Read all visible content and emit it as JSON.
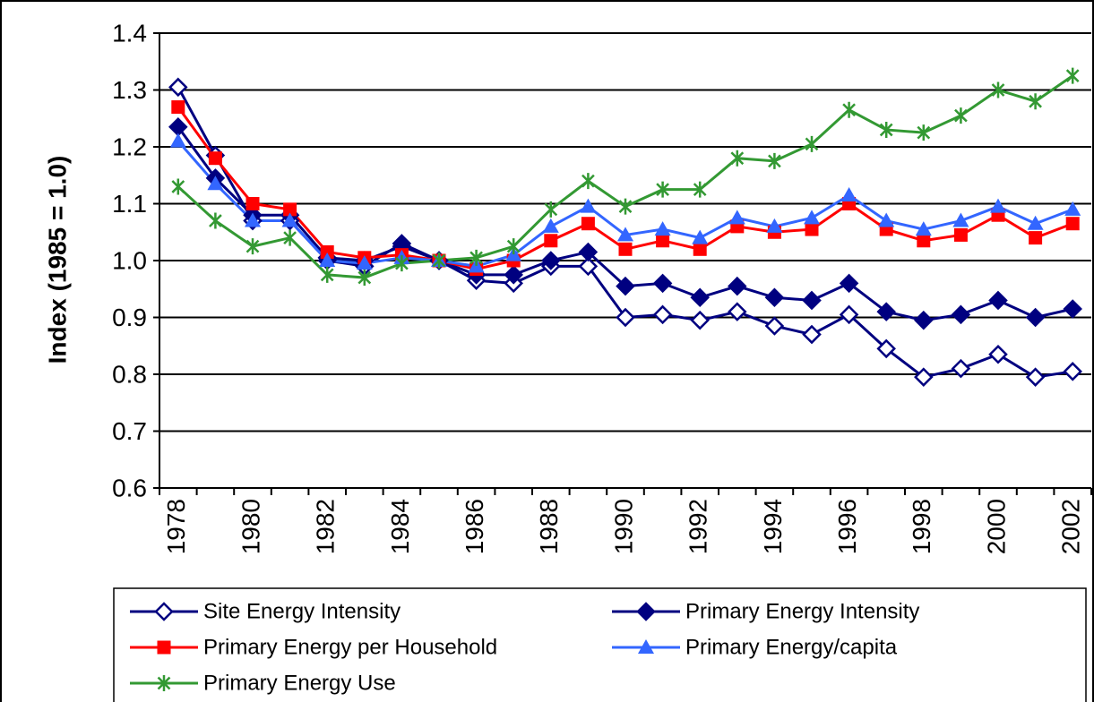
{
  "chart_data": {
    "type": "line",
    "y_label": "Index (1985 = 1.0)",
    "categories": [
      "1978",
      null,
      "1980",
      null,
      "1982",
      null,
      "1984",
      null,
      "1986",
      null,
      "1988",
      null,
      "1990",
      null,
      "1992",
      null,
      "1994",
      null,
      "1996",
      null,
      "1998",
      null,
      "2000",
      null,
      "2002"
    ],
    "ylim": [
      0.6,
      1.4
    ],
    "yticks": [
      0.6,
      0.7,
      0.8,
      0.9,
      {
        "value": 1,
        "label": "1.0"
      },
      1.1,
      1.2,
      1.3,
      1.4
    ],
    "grid": true,
    "legend": "bottom",
    "series": [
      {
        "name": "Site Energy Intensity",
        "color": "#000080",
        "marker": "diamond-open",
        "values": [
          1.305,
          1.185,
          1.07,
          1.07,
          1.0,
          0.99,
          1.03,
          1.0,
          0.965,
          0.96,
          0.99,
          0.99,
          0.9,
          0.905,
          0.895,
          0.91,
          0.885,
          0.87,
          0.905,
          0.845,
          0.795,
          0.81,
          0.835,
          0.795,
          0.805
        ]
      },
      {
        "name": "Primary Energy Intensity",
        "color": "#000080",
        "marker": "diamond",
        "values": [
          1.235,
          1.145,
          1.08,
          1.08,
          1.005,
          1.0,
          1.025,
          1.0,
          0.975,
          0.975,
          1.0,
          1.015,
          0.955,
          0.96,
          0.935,
          0.955,
          0.935,
          0.93,
          0.96,
          0.91,
          0.895,
          0.905,
          0.93,
          0.9,
          0.915
        ]
      },
      {
        "name": "Primary Energy per Household",
        "color": "#ff0000",
        "marker": "square",
        "values": [
          1.27,
          1.18,
          1.1,
          1.09,
          1.015,
          1.005,
          1.01,
          1.0,
          0.985,
          1.0,
          1.035,
          1.065,
          1.02,
          1.035,
          1.02,
          1.06,
          1.05,
          1.055,
          1.1,
          1.055,
          1.035,
          1.045,
          1.08,
          1.04,
          1.065
        ]
      },
      {
        "name": "Primary Energy/capita",
        "color": "#3366ff",
        "marker": "triangle",
        "values": [
          1.21,
          1.135,
          1.07,
          1.07,
          1.0,
          0.995,
          1.005,
          1.0,
          0.99,
          1.01,
          1.06,
          1.095,
          1.045,
          1.055,
          1.04,
          1.075,
          1.06,
          1.075,
          1.115,
          1.07,
          1.055,
          1.07,
          1.095,
          1.065,
          1.09
        ]
      },
      {
        "name": "Primary Energy Use",
        "color": "#339933",
        "marker": "star",
        "values": [
          1.13,
          1.07,
          1.025,
          1.04,
          0.975,
          0.97,
          0.995,
          1.0,
          1.005,
          1.025,
          1.09,
          1.14,
          1.095,
          1.125,
          1.125,
          1.18,
          1.175,
          1.205,
          1.265,
          1.23,
          1.225,
          1.255,
          1.3,
          1.28,
          1.325
        ]
      }
    ]
  }
}
